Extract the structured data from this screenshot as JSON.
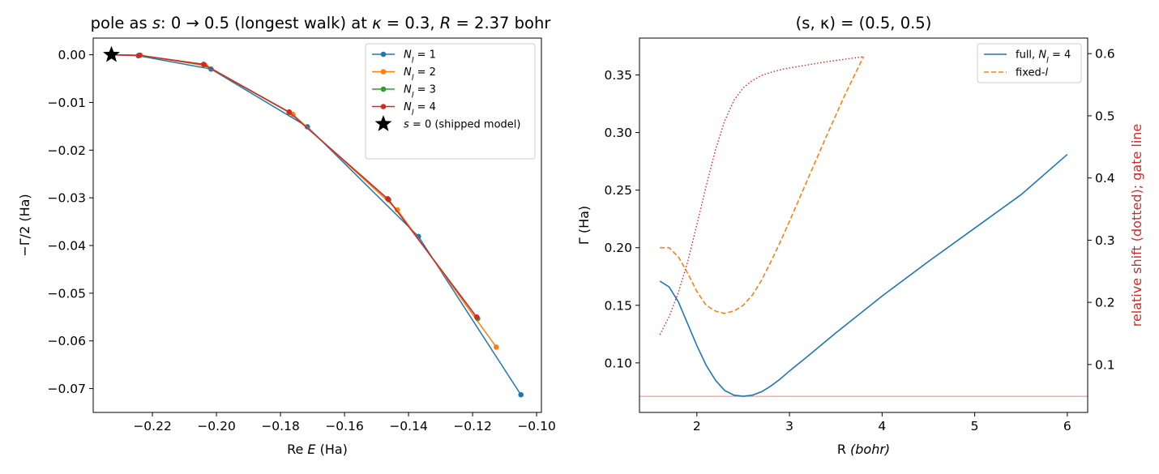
{
  "colors": {
    "n1": "#1f77b4",
    "n2": "#ff7f0e",
    "n3": "#2ca02c",
    "n4": "#d62728",
    "gate": "#f08080"
  },
  "chart_data": [
    {
      "type": "line",
      "title_segments": [
        "pole as ",
        "s",
        ": 0 → 0.5 (longest walk) at ",
        "κ",
        " = 0.3, ",
        "R",
        " = 2.37 bohr"
      ],
      "xlabel_segments": [
        "Re ",
        "E",
        " (Ha)"
      ],
      "ylabel": "−Γ/2 (Ha)",
      "xlim": [
        -0.2385,
        -0.0985
      ],
      "ylim": [
        -0.075,
        0.0035
      ],
      "xticks": [
        -0.22,
        -0.2,
        -0.18,
        -0.16,
        -0.14,
        -0.12,
        -0.1
      ],
      "xtick_labels": [
        "−0.22",
        "−0.20",
        "−0.18",
        "−0.16",
        "−0.14",
        "−0.12",
        "−0.10"
      ],
      "yticks": [
        0.0,
        -0.01,
        -0.02,
        -0.03,
        -0.04,
        -0.05,
        -0.06,
        -0.07
      ],
      "ytick_labels": [
        "0.00",
        "−0.01",
        "−0.02",
        "−0.03",
        "−0.04",
        "−0.05",
        "−0.06",
        "−0.07"
      ],
      "legend_position": "upper-right",
      "series": [
        {
          "name_sym": "N",
          "name_sub": "l",
          "name_val": " = 1",
          "color_key": "n1",
          "x": [
            -0.2328,
            -0.2244,
            -0.2017,
            -0.1716,
            -0.1369,
            -0.1049
          ],
          "y": [
            0.0,
            -0.0002,
            -0.003,
            -0.0151,
            -0.0381,
            -0.0713
          ]
        },
        {
          "name_sym": "N",
          "name_sub": "l",
          "name_val": " = 2",
          "color_key": "n2",
          "x": [
            -0.2328,
            -0.2237,
            -0.2034,
            -0.1761,
            -0.1435,
            -0.1126
          ],
          "y": [
            0.0,
            -0.0001,
            -0.0023,
            -0.0125,
            -0.0325,
            -0.0613
          ]
        },
        {
          "name_sym": "N",
          "name_sub": "l",
          "name_val": " = 3",
          "color_key": "n3",
          "x": [
            -0.2328,
            -0.224,
            -0.2039,
            -0.1772,
            -0.1462,
            -0.1184
          ],
          "y": [
            0.0,
            -0.0001,
            -0.0021,
            -0.0121,
            -0.0304,
            -0.0553
          ]
        },
        {
          "name_sym": "N",
          "name_sub": "l",
          "name_val": " = 4",
          "color_key": "n4",
          "x": [
            -0.2328,
            -0.2241,
            -0.204,
            -0.1773,
            -0.1465,
            -0.1187
          ],
          "y": [
            0.0,
            -0.0001,
            -0.002,
            -0.012,
            -0.0302,
            -0.055
          ]
        }
      ],
      "marker_point": {
        "label_sym": "s",
        "label_rest": " = 0 (shipped model)",
        "x": -0.2328,
        "y": 0.0
      }
    },
    {
      "type": "line",
      "title": "(s, κ) = (0.5, 0.5)",
      "xlabel_segments": [
        "R",
        " (bohr)"
      ],
      "ylabel": "Γ (Ha)",
      "y2label": "relative shift (dotted); gate line",
      "xlim": [
        1.38,
        6.22
      ],
      "ylim": [
        0.057,
        0.382
      ],
      "y2lim": [
        0.023,
        0.625
      ],
      "xticks": [
        2,
        3,
        4,
        5,
        6
      ],
      "xtick_labels": [
        "2",
        "3",
        "4",
        "5",
        "6"
      ],
      "yticks": [
        0.1,
        0.15,
        0.2,
        0.25,
        0.3,
        0.35
      ],
      "ytick_labels": [
        "0.10",
        "0.15",
        "0.20",
        "0.25",
        "0.30",
        "0.35"
      ],
      "y2ticks": [
        0.1,
        0.2,
        0.3,
        0.4,
        0.5,
        0.6
      ],
      "y2tick_labels": [
        "0.1",
        "0.2",
        "0.3",
        "0.4",
        "0.5",
        "0.6"
      ],
      "legend_position": "upper-right",
      "series": [
        {
          "name_prefix": "full, ",
          "name_sym": "N",
          "name_sub": "l",
          "name_val": " = 4",
          "color_key": "n1",
          "style": "solid",
          "x": [
            1.6,
            1.7,
            1.8,
            1.9,
            2.0,
            2.1,
            2.2,
            2.3,
            2.4,
            2.5,
            2.6,
            2.7,
            2.8,
            2.9,
            3.0,
            3.2,
            3.5,
            4.0,
            4.5,
            5.0,
            5.5,
            6.0
          ],
          "y": [
            0.171,
            0.166,
            0.153,
            0.134,
            0.115,
            0.098,
            0.085,
            0.076,
            0.072,
            0.071,
            0.072,
            0.075,
            0.08,
            0.086,
            0.093,
            0.106,
            0.126,
            0.158,
            0.188,
            0.217,
            0.246,
            0.281
          ]
        },
        {
          "name_prefix": "fixed-",
          "name_sym": "l",
          "name_sub": "",
          "name_val": "",
          "color_key": "n2",
          "style": "dashed",
          "x": [
            1.6,
            1.7,
            1.8,
            1.9,
            2.0,
            2.1,
            2.2,
            2.3,
            2.4,
            2.5,
            2.6,
            2.7,
            2.8,
            2.9,
            3.0,
            3.2,
            3.4,
            3.6,
            3.8
          ],
          "y": [
            0.2,
            0.2,
            0.192,
            0.178,
            0.162,
            0.15,
            0.145,
            0.143,
            0.145,
            0.15,
            0.159,
            0.172,
            0.188,
            0.205,
            0.223,
            0.26,
            0.297,
            0.333,
            0.366
          ]
        }
      ],
      "secondary_series": {
        "axis": "y2",
        "color_key": "n4",
        "style": "dotted",
        "x": [
          1.6,
          1.7,
          1.8,
          1.9,
          2.0,
          2.1,
          2.2,
          2.3,
          2.4,
          2.5,
          2.6,
          2.7,
          2.8,
          2.9,
          3.0,
          3.2,
          3.4,
          3.6,
          3.8
        ],
        "y": [
          0.148,
          0.177,
          0.216,
          0.265,
          0.325,
          0.387,
          0.445,
          0.492,
          0.525,
          0.545,
          0.557,
          0.565,
          0.57,
          0.574,
          0.577,
          0.582,
          0.587,
          0.591,
          0.595
        ]
      },
      "gate_line": {
        "axis": "y",
        "value": 0.071,
        "color_key": "gate"
      }
    }
  ]
}
